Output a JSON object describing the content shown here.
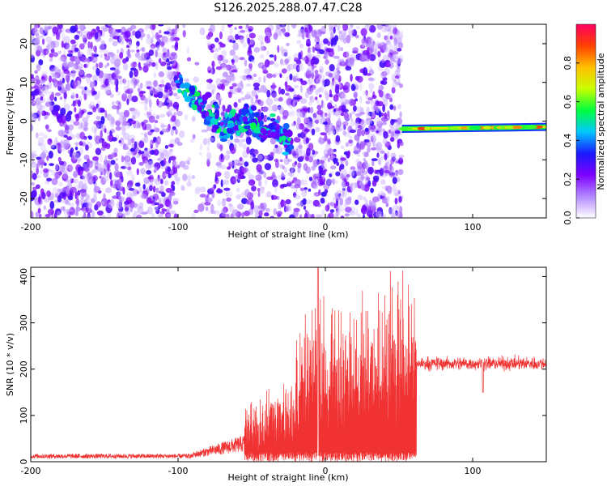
{
  "title": "S126.2025.288.07.47.C28",
  "chart_data": [
    {
      "type": "heatmap",
      "name": "spectrogram",
      "xlabel": "Height of straight line (km)",
      "ylabel": "Frequency (Hz)",
      "xlim": [
        -200,
        150
      ],
      "ylim": [
        -25,
        25
      ],
      "xticks": [
        -200,
        -100,
        0,
        100
      ],
      "yticks": [
        20,
        10,
        0,
        -10,
        -20
      ],
      "noise_regions": [
        {
          "x_range": [
            -200,
            -100
          ],
          "density": "dense",
          "amplitude_range": [
            0.05,
            0.3
          ]
        },
        {
          "x_range": [
            -100,
            -80
          ],
          "density": "sparse",
          "amplitude_range": [
            0.05,
            0.2
          ]
        },
        {
          "x_range": [
            -80,
            -20
          ],
          "density": "medium",
          "amplitude_range": [
            0.05,
            0.3
          ]
        },
        {
          "x_range": [
            -20,
            52
          ],
          "density": "dense",
          "amplitude_range": [
            0.05,
            0.3
          ]
        }
      ],
      "trace": {
        "x": [
          -100,
          -92,
          -85,
          -80,
          -75,
          -70,
          -65,
          -60,
          -55,
          -50,
          -45,
          -40,
          -35,
          -30,
          -25,
          -22
        ],
        "y": [
          10,
          7,
          5,
          3,
          1,
          -2,
          -1,
          0,
          1,
          0,
          -2,
          -3,
          -1,
          -4,
          -5,
          -6
        ],
        "amplitude_range": [
          0.2,
          0.55
        ]
      },
      "tone_line": {
        "x": [
          52,
          150
        ],
        "y": [
          -2,
          -1.5
        ],
        "amplitude_range": [
          0.55,
          0.95
        ],
        "note": "continuous narrowband line slowly rising in frequency"
      },
      "colorbar": {
        "label": "Normalized spectral amplitude",
        "range": [
          0.0,
          1.0
        ],
        "ticks": [
          "0.0",
          "0.2",
          "0.4",
          "0.6",
          "0.8"
        ],
        "colors": [
          "#ffffff",
          "#b388ff",
          "#7c00ff",
          "#1a1aff",
          "#00c8ff",
          "#00ff3c",
          "#c8ff00",
          "#ffc000",
          "#ff4000",
          "#ff0060"
        ]
      }
    },
    {
      "type": "line",
      "name": "snr",
      "xlabel": "Height of straight line (km)",
      "ylabel": "SNR (10 * v/v)",
      "xlim": [
        -200,
        150
      ],
      "ylim": [
        0,
        420
      ],
      "xticks": [
        -200,
        -100,
        0,
        100
      ],
      "yticks": [
        0,
        100,
        200,
        300,
        400
      ],
      "color": "#f03232",
      "segments": [
        {
          "x_range": [
            -200,
            -90
          ],
          "baseline": 12,
          "spread": 10
        },
        {
          "x_range": [
            -90,
            -55
          ],
          "baseline": 18,
          "spread": 25,
          "note": "slow rise"
        },
        {
          "x_range": [
            -55,
            -20
          ],
          "baseline": 60,
          "spread": 120,
          "note": "growing bursts"
        },
        {
          "x_range": [
            -20,
            0
          ],
          "baseline": 150,
          "spread": 230
        },
        {
          "x_range": [
            0,
            62
          ],
          "baseline": 160,
          "spread": 260,
          "peak": 420
        },
        {
          "x_range": [
            62,
            150
          ],
          "baseline": 212,
          "spread": 20
        }
      ],
      "features": [
        {
          "x": 107,
          "y": 150,
          "label": "dip"
        },
        {
          "x": -5,
          "y": 420,
          "label": "max spike"
        }
      ]
    }
  ]
}
